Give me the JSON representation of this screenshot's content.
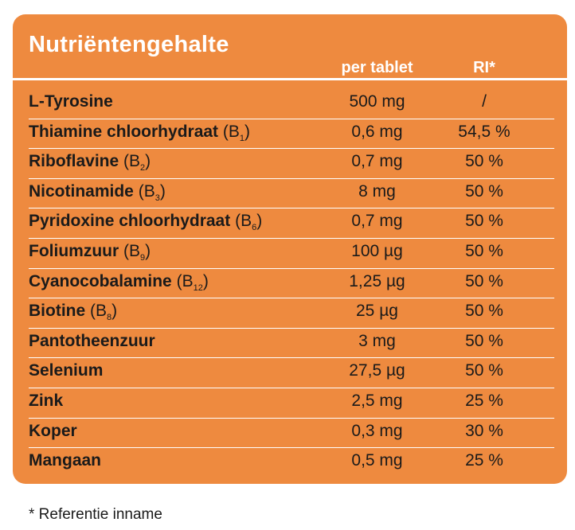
{
  "table": {
    "title": "Nutriëntengehalte",
    "col_per": "per tablet",
    "col_ri": "RI*",
    "rows": [
      {
        "name": "L-Tyrosine",
        "vit": "",
        "sub": "",
        "close": "",
        "amount": "500 mg",
        "ri": "/"
      },
      {
        "name": "Thiamine chloorhydraat",
        "vit": "(B",
        "sub": "1",
        "close": ")",
        "amount": "0,6 mg",
        "ri": "54,5 %"
      },
      {
        "name": "Riboflavine",
        "vit": "(B",
        "sub": "2",
        "close": ")",
        "amount": "0,7 mg",
        "ri": "50 %"
      },
      {
        "name": "Nicotinamide",
        "vit": "(B",
        "sub": "3",
        "close": ")",
        "amount": "8 mg",
        "ri": "50 %"
      },
      {
        "name": "Pyridoxine chloorhydraat",
        "vit": "(B",
        "sub": "6",
        "close": ")",
        "amount": "0,7 mg",
        "ri": "50 %"
      },
      {
        "name": "Foliumzuur",
        "vit": "(B",
        "sub": "9",
        "close": ")",
        "amount": "100 µg",
        "ri": "50 %"
      },
      {
        "name": "Cyanocobalamine",
        "vit": "(B",
        "sub": "12",
        "close": ")",
        "amount": "1,25 µg",
        "ri": "50 %"
      },
      {
        "name": "Biotine",
        "vit": "(B",
        "sub": "8",
        "close": ")",
        "amount": "25 µg",
        "ri": "50 %"
      },
      {
        "name": "Pantotheenzuur",
        "vit": "",
        "sub": "",
        "close": "",
        "amount": "3 mg",
        "ri": "50 %"
      },
      {
        "name": "Selenium",
        "vit": "",
        "sub": "",
        "close": "",
        "amount": "27,5 µg",
        "ri": "50 %"
      },
      {
        "name": "Zink",
        "vit": "",
        "sub": "",
        "close": "",
        "amount": "2,5 mg",
        "ri": "25 %"
      },
      {
        "name": "Koper",
        "vit": "",
        "sub": "",
        "close": "",
        "amount": "0,3 mg",
        "ri": "30 %"
      },
      {
        "name": "Mangaan",
        "vit": "",
        "sub": "",
        "close": "",
        "amount": "0,5 mg",
        "ri": "25 %"
      }
    ]
  },
  "footnote": "* Referentie inname",
  "colors": {
    "panel": "#ee8a3f",
    "header_text": "#ffffff",
    "body_text": "#1a1a1a"
  }
}
